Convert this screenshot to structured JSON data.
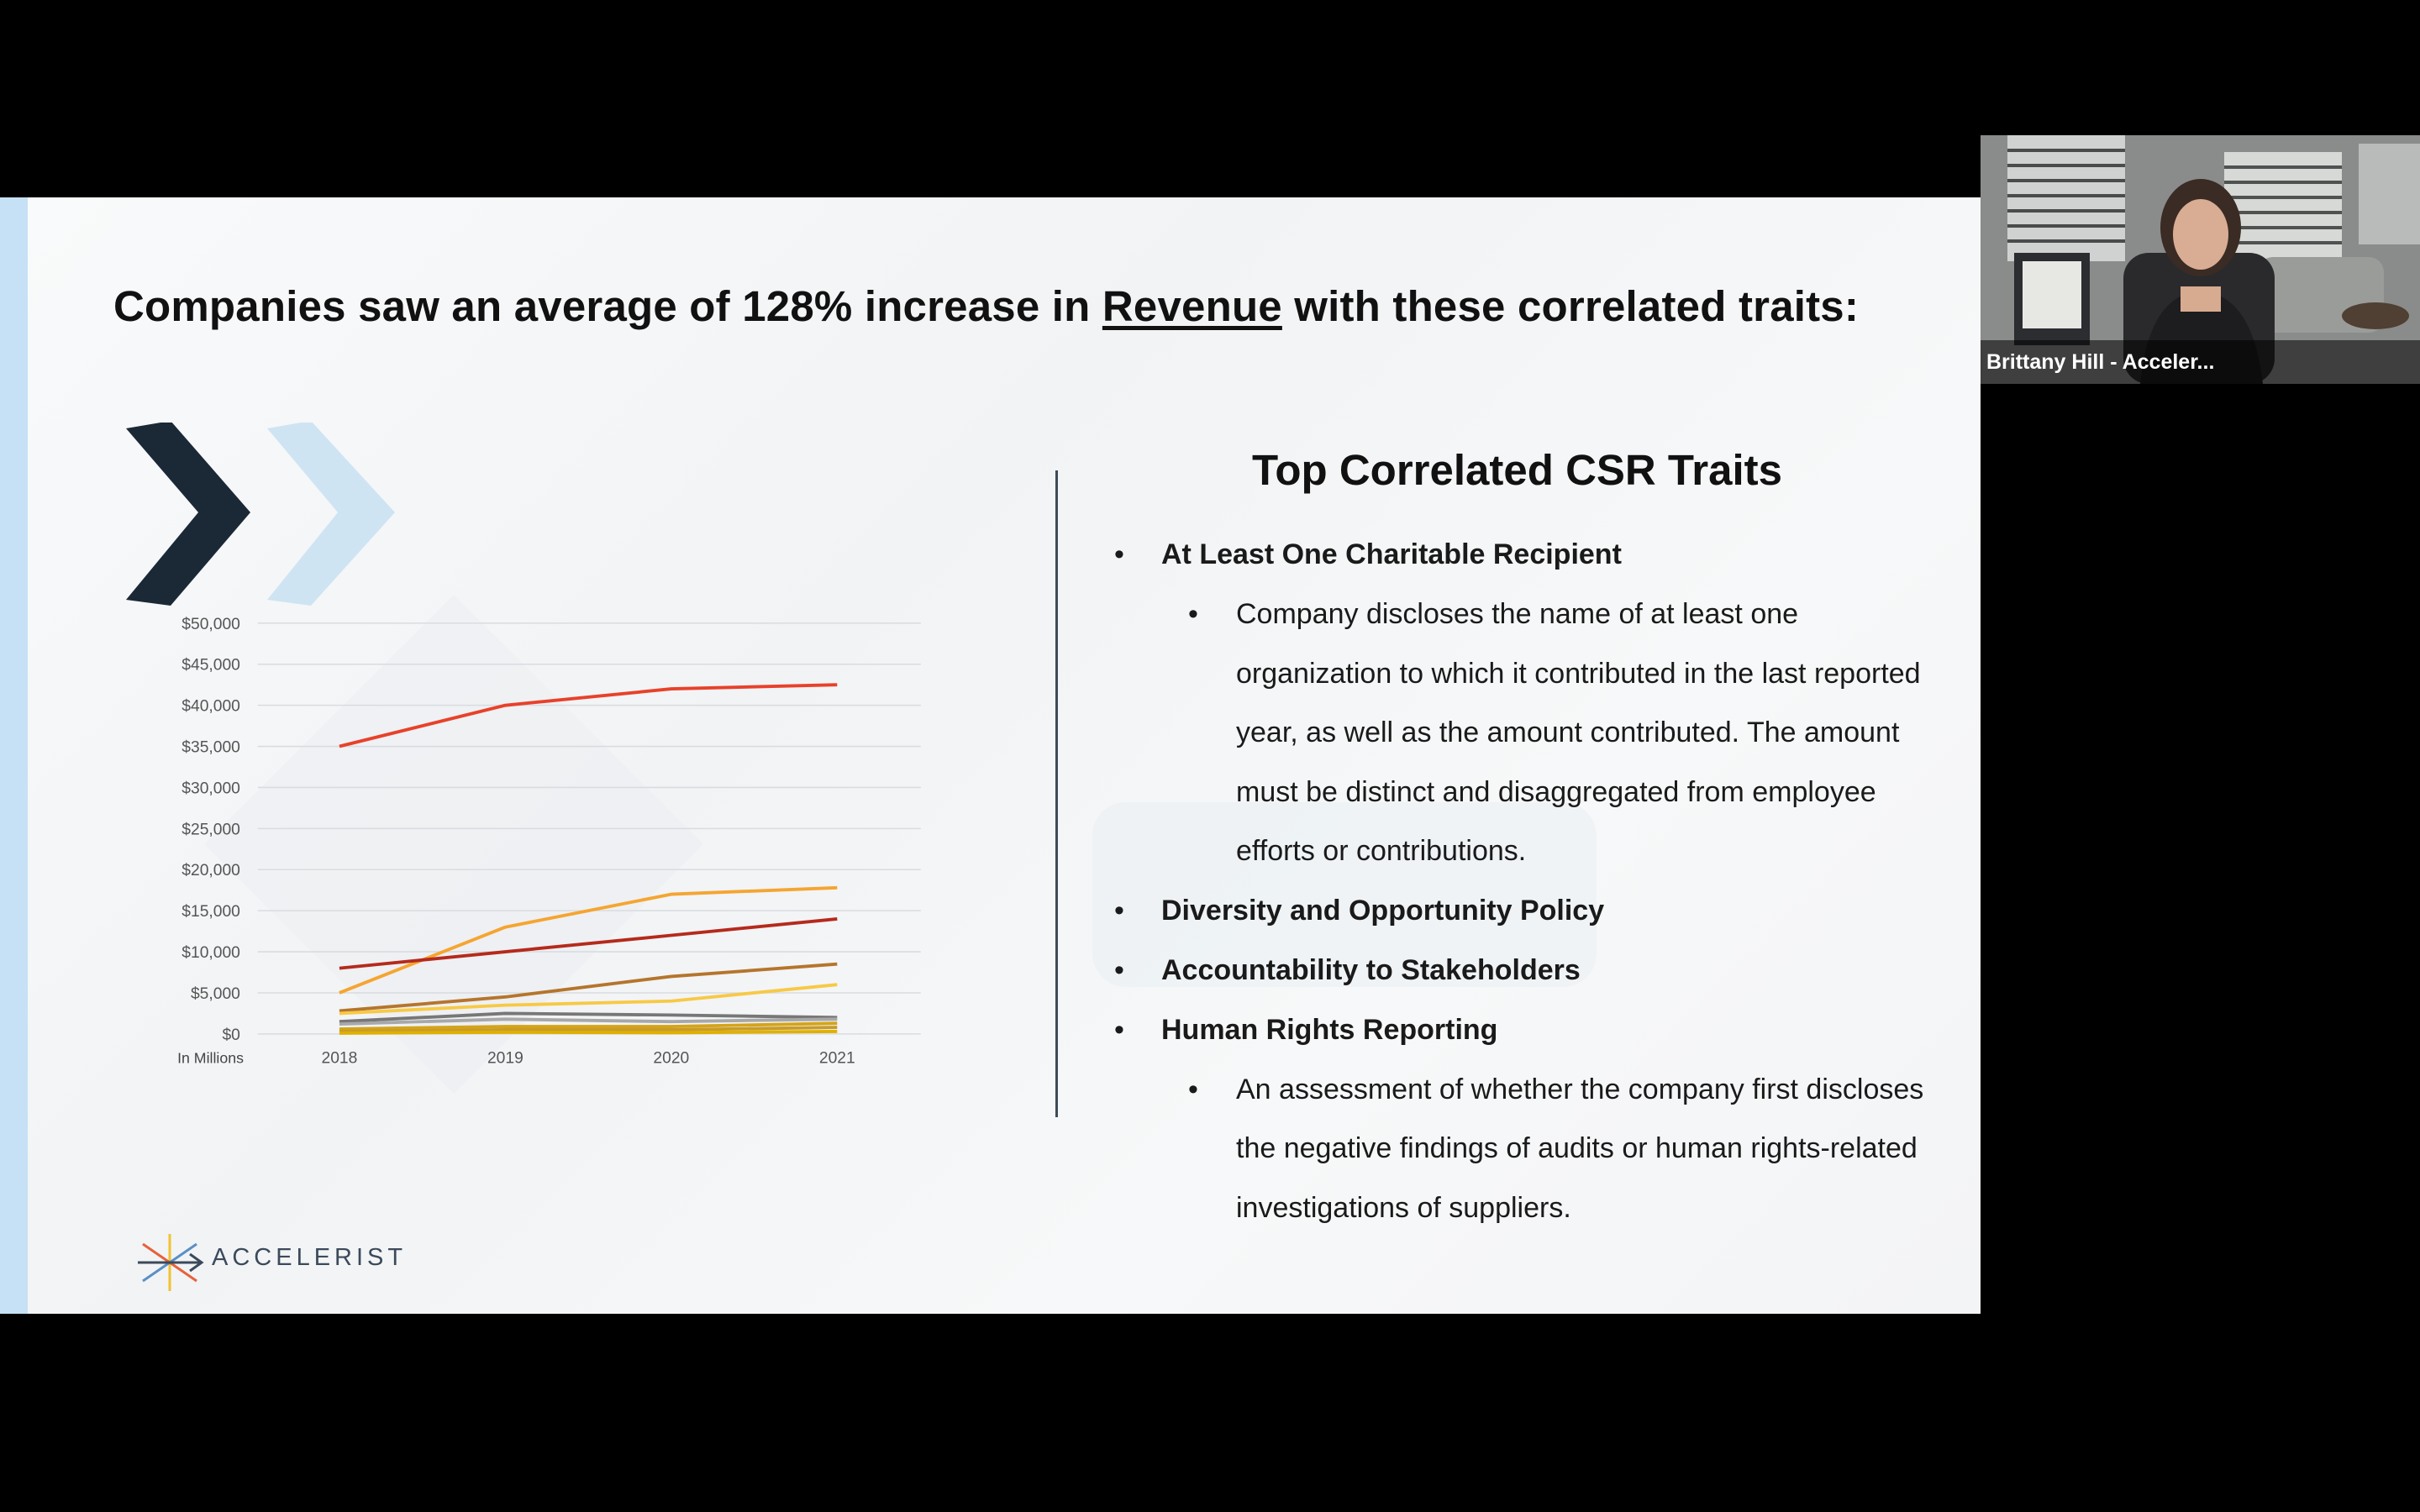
{
  "slide": {
    "title_pre": "Companies saw an average of 128% increase in ",
    "title_underlined": "Revenue",
    "title_post": " with these correlated traits:",
    "right_title": "Top Correlated CSR Traits",
    "traits": [
      {
        "level": "main",
        "text": "At Least One Charitable Recipient"
      },
      {
        "level": "sub",
        "text": "Company discloses the name of at least one organization to which it contributed in the last reported year, as well as the amount contributed. The amount must be distinct and disaggregated from employee efforts or contributions."
      },
      {
        "level": "main",
        "text": "Diversity and Opportunity Policy"
      },
      {
        "level": "main",
        "text": "Accountability to Stakeholders"
      },
      {
        "level": "main",
        "text": "Human Rights Reporting"
      },
      {
        "level": "sub",
        "text": "An assessment of whether the company first discloses the negative findings of audits or human rights-related investigations of suppliers."
      }
    ],
    "logo_text": "ACCELERIST",
    "colors": {
      "chevron_dark": "#1b2836",
      "chevron_light": "#cfe4f2",
      "accent_bar": "#c6e1f5"
    }
  },
  "chart_data": {
    "type": "line",
    "x": [
      "2018",
      "2019",
      "2020",
      "2021"
    ],
    "unit_label": "In Millions",
    "ylim": [
      0,
      50000
    ],
    "yticks": [
      "$0",
      "$5,000",
      "$10,000",
      "$15,000",
      "$20,000",
      "$25,000",
      "$30,000",
      "$35,000",
      "$40,000",
      "$45,000",
      "$50,000"
    ],
    "grid": true,
    "series": [
      {
        "color": "#e8412a",
        "values": [
          35000,
          40000,
          42000,
          42500
        ]
      },
      {
        "color": "#f5a531",
        "values": [
          5000,
          13000,
          17000,
          17800
        ]
      },
      {
        "color": "#b52a1c",
        "values": [
          8000,
          10000,
          12000,
          14000
        ]
      },
      {
        "color": "#b5752c",
        "values": [
          2800,
          4500,
          7000,
          8500
        ]
      },
      {
        "color": "#f7c945",
        "values": [
          2500,
          3500,
          4000,
          6000
        ]
      },
      {
        "color": "#777777",
        "values": [
          1500,
          2500,
          2300,
          2000
        ]
      },
      {
        "color": "#a8a8a8",
        "values": [
          1200,
          1800,
          1500,
          1800
        ]
      },
      {
        "color": "#d4a419",
        "values": [
          600,
          900,
          900,
          1300
        ]
      },
      {
        "color": "#c89b2a",
        "values": [
          300,
          500,
          500,
          800
        ]
      },
      {
        "color": "#e0b000",
        "values": [
          100,
          200,
          150,
          300
        ]
      }
    ]
  },
  "video": {
    "participant_name": "Brittany Hill - Acceler..."
  }
}
